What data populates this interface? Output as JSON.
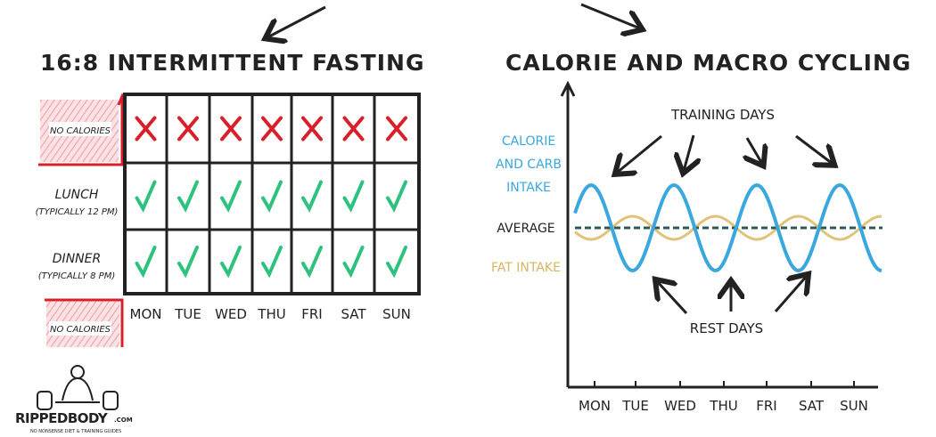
{
  "left": {
    "title": "16:8 INTERMITTENT FASTING",
    "no_calories_top": "NO CALORIES",
    "no_calories_bottom": "NO CALORIES",
    "rows": [
      {
        "label": "LUNCH",
        "sub": "(TYPICALLY 12 PM)"
      },
      {
        "label": "DINNER",
        "sub": "(TYPICALLY 8 PM)"
      }
    ],
    "days": [
      "MON",
      "TUE",
      "WED",
      "THU",
      "FRI",
      "SAT",
      "SUN"
    ],
    "marks": {
      "fasting": "cross-icon",
      "eating": "check-icon"
    }
  },
  "right": {
    "title": "CALORIE AND MACRO CYCLING",
    "calorie_label": [
      "CALORIE",
      "AND CARB",
      "INTAKE"
    ],
    "average_label": "AVERAGE",
    "fat_label": "FAT INTAKE",
    "training_label": "TRAINING DAYS",
    "rest_label": "REST DAYS",
    "days": [
      "MON",
      "TUE",
      "WED",
      "THU",
      "FRI",
      "SAT",
      "SUN"
    ]
  },
  "logo": {
    "name": "RIPPEDBODY",
    "suffix": ".COM",
    "tagline": "NO NONSENSE DIET & TRAINING GUIDES"
  },
  "colors": {
    "red": "#d9202a",
    "green": "#2ec27e",
    "blue": "#3aa8df",
    "gold": "#d9b55f",
    "ink": "#222222"
  }
}
